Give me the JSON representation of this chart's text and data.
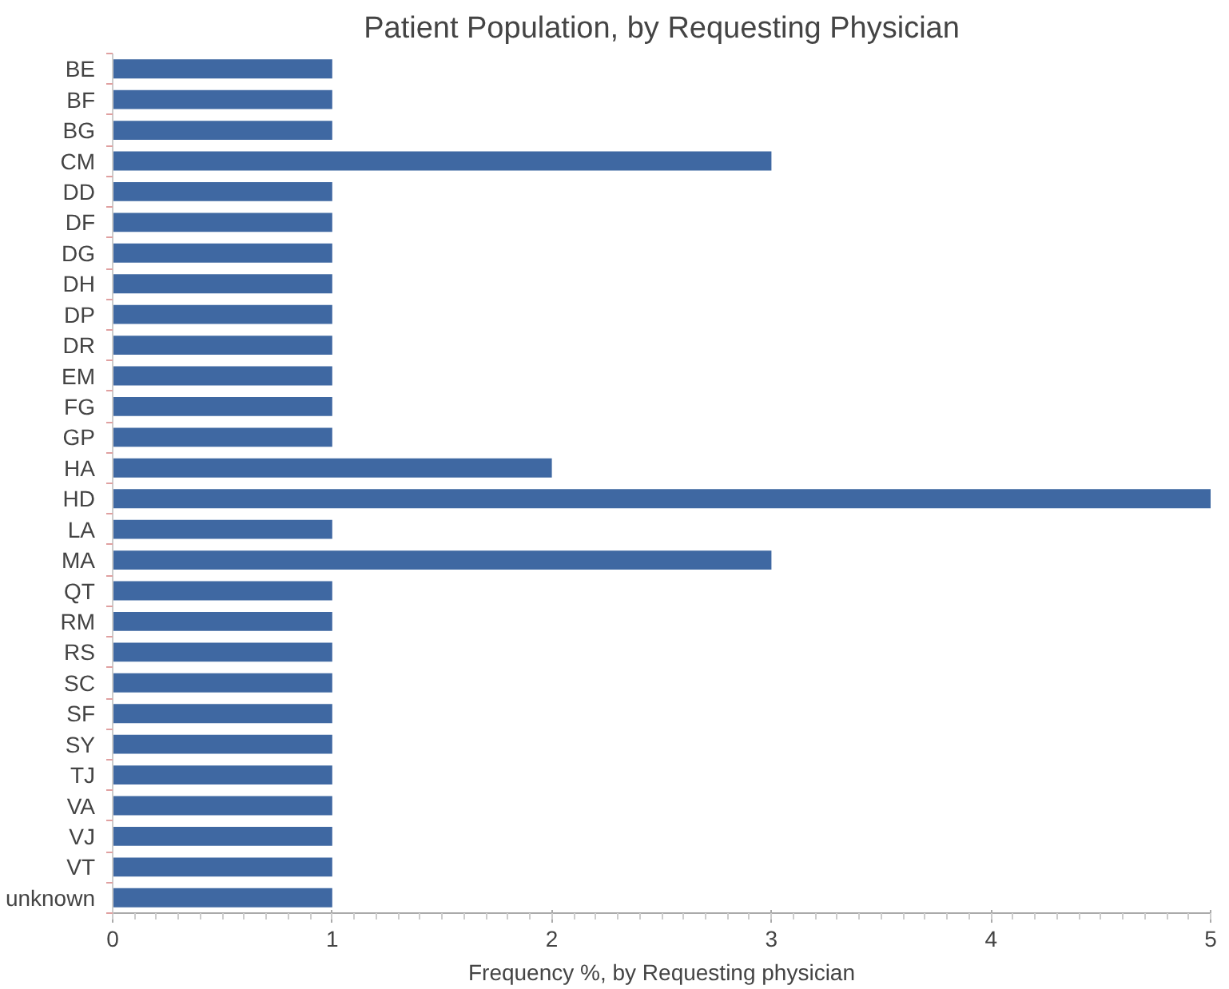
{
  "chart_data": {
    "type": "bar",
    "orientation": "horizontal",
    "title": "Patient Population, by Requesting Physician",
    "xlabel": "Frequency %, by Requesting physician",
    "categories": [
      "BE",
      "BF",
      "BG",
      "CM",
      "DD",
      "DF",
      "DG",
      "DH",
      "DP",
      "DR",
      "EM",
      "FG",
      "GP",
      "HA",
      "HD",
      "LA",
      "MA",
      "QT",
      "RM",
      "RS",
      "SC",
      "SF",
      "SY",
      "TJ",
      "VA",
      "VJ",
      "VT",
      "unknown"
    ],
    "values": [
      1,
      1,
      1,
      3,
      1,
      1,
      1,
      1,
      1,
      1,
      1,
      1,
      1,
      2,
      5,
      1,
      3,
      1,
      1,
      1,
      1,
      1,
      1,
      1,
      1,
      1,
      1,
      1
    ],
    "color": "#3f68a2",
    "xlim": [
      0,
      5
    ],
    "xticks": [
      0,
      1,
      2,
      3,
      4,
      5
    ],
    "grid": false
  }
}
